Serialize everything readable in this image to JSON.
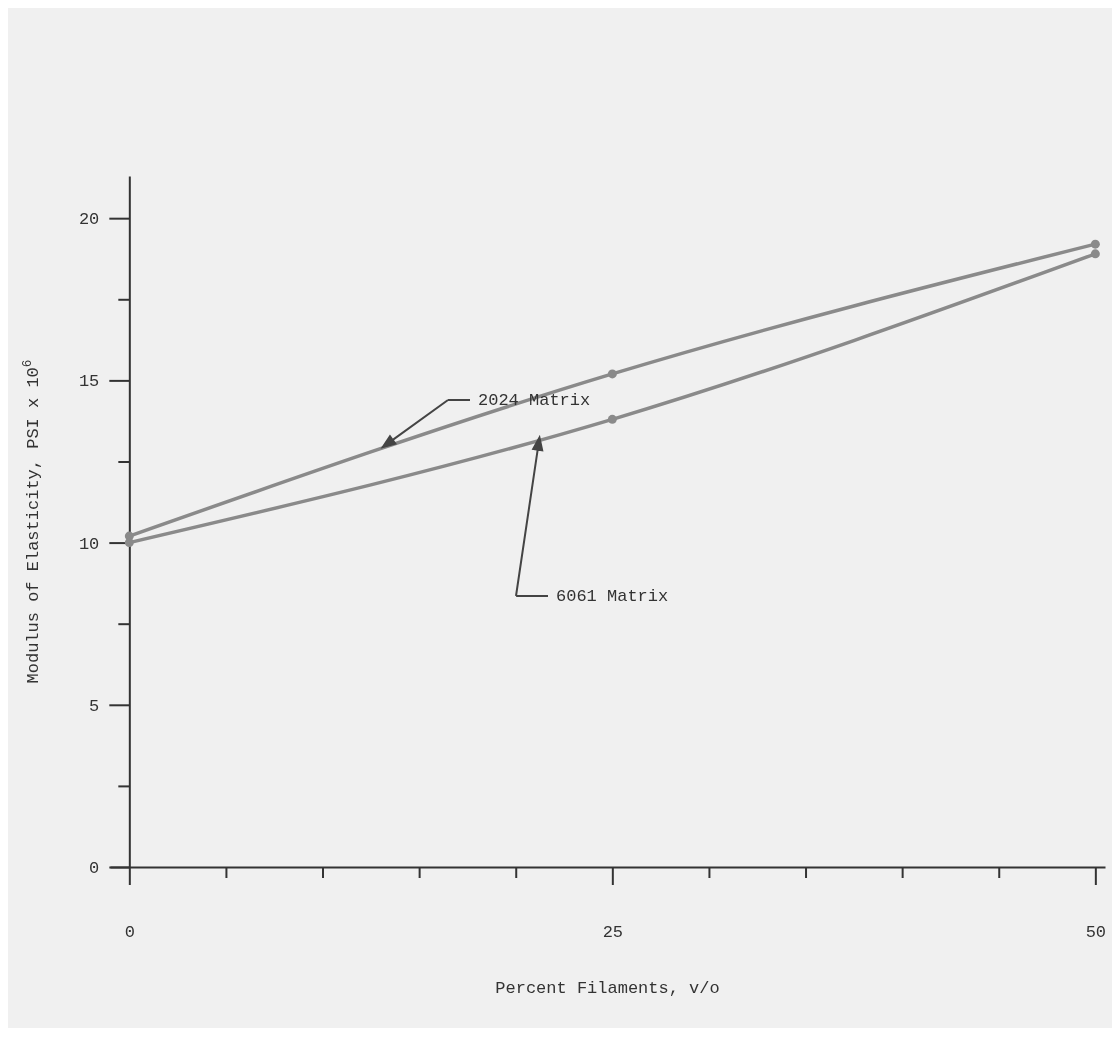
{
  "chart_data": {
    "type": "line",
    "xlabel": "Percent Filaments, v/o",
    "ylabel": "Modulus of Elasticity, PSI x 10$^{6}$",
    "x": [
      0,
      25,
      50
    ],
    "series": [
      {
        "name": "2024 Matrix",
        "color": "#8a8a8a",
        "values": [
          10.2,
          15.2,
          19.2
        ]
      },
      {
        "name": "6061 Matrix",
        "color": "#8a8a8a",
        "values": [
          10.0,
          13.8,
          18.9
        ]
      }
    ],
    "xlim": [
      -1,
      50.5
    ],
    "ylim": [
      0,
      21.3
    ],
    "xticks": [
      0,
      {
        "value": 5,
        "label": null
      },
      {
        "value": 10,
        "label": null
      },
      {
        "value": 15,
        "label": null
      },
      {
        "value": 20,
        "label": null
      },
      25,
      {
        "value": 30,
        "label": null
      },
      {
        "value": 35,
        "label": null
      },
      {
        "value": 40,
        "label": null
      },
      {
        "value": 45,
        "label": null
      },
      50
    ],
    "yticks": [
      0,
      {
        "value": 2.5,
        "label": null
      },
      5,
      {
        "value": 7.5,
        "label": null
      },
      10,
      {
        "value": 12.5,
        "label": null
      },
      15,
      {
        "value": 17.5,
        "label": null
      },
      20
    ],
    "grid": false,
    "marker": "circle",
    "line_style": "solid"
  }
}
